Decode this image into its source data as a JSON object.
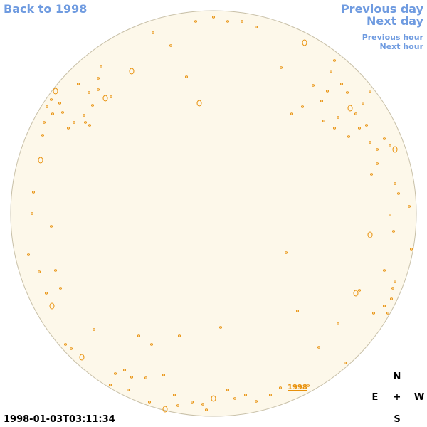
{
  "nav": {
    "back_label": "Back to 1998",
    "previous_day_label": "Previous day",
    "next_day_label": "Next day",
    "previous_hour_label": "Previous hour",
    "next_hour_label": "Next hour"
  },
  "disk": {
    "label": "1998",
    "fill_color": "#fdf8ea",
    "outline_color": "#c8c0a8",
    "contour_color": "#e8900a"
  },
  "compass": {
    "north": "N",
    "east": "E",
    "center": "+",
    "west": "W",
    "south": "S"
  },
  "timestamp": "1998-01-03T03:11:34"
}
